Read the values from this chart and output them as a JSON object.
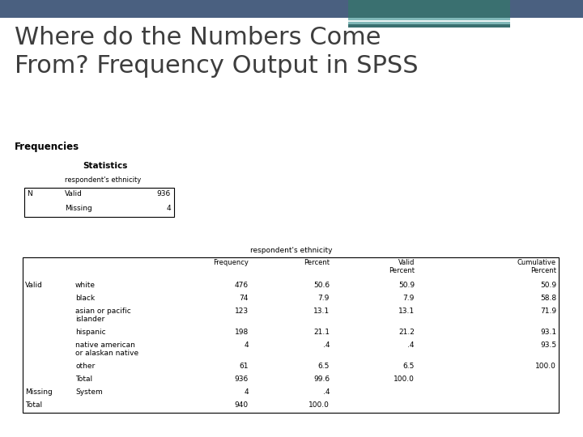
{
  "title": "Where do the Numbers Come\nFrom? Frequency Output in SPSS",
  "title_fontsize": 22,
  "title_color": "#3d3d3d",
  "bg_color": "#ffffff",
  "header_bg": "#4a6080",
  "header_accent_dark": "#3a7070",
  "header_accent_light": "#80b8b8",
  "frequencies_label": "Frequencies",
  "statistics_label": "Statistics",
  "stats_subtitle": "respondent's ethnicity",
  "freq_subtitle": "respondent's ethnicity",
  "freq_rows": [
    [
      "Valid",
      "white",
      "476",
      "50.6",
      "50.9",
      "50.9"
    ],
    [
      "",
      "black",
      "74",
      "7.9",
      "7.9",
      "58.8"
    ],
    [
      "",
      "asian or pacific\nislander",
      "123",
      "13.1",
      "13.1",
      "71.9"
    ],
    [
      "",
      "hispanic",
      "198",
      "21.1",
      "21.2",
      "93.1"
    ],
    [
      "",
      "native american\nor alaskan native",
      "4",
      ".4",
      ".4",
      "93.5"
    ],
    [
      "",
      "other",
      "61",
      "6.5",
      "6.5",
      "100.0"
    ],
    [
      "",
      "Total",
      "936",
      "99.6",
      "100.0",
      ""
    ],
    [
      "Missing",
      "System",
      "4",
      ".4",
      "",
      ""
    ],
    [
      "Total",
      "",
      "940",
      "100.0",
      "",
      ""
    ]
  ]
}
